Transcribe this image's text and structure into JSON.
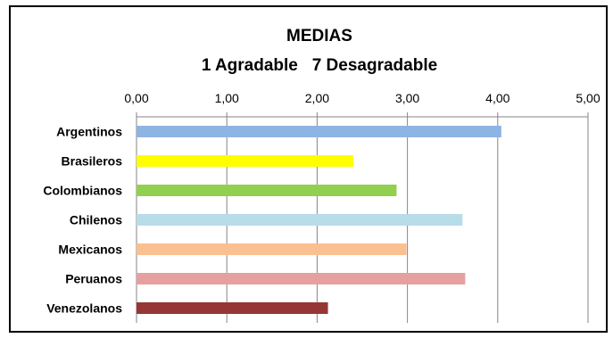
{
  "chart_data": {
    "type": "bar",
    "orientation": "horizontal",
    "title": [
      "MEDIAS",
      "1 Agradable   7 Desagradable"
    ],
    "categories": [
      "Argentinos",
      "Brasileros",
      "Colombianos",
      "Chilenos",
      "Mexicanos",
      "Peruanos",
      "Venezolanos"
    ],
    "values": [
      4.04,
      2.4,
      2.88,
      3.61,
      2.99,
      3.64,
      2.12
    ],
    "colors": [
      "#8eb4e3",
      "#ffff00",
      "#92d050",
      "#b7dde8",
      "#fac090",
      "#e6a0a0",
      "#953735"
    ],
    "xlim": [
      0,
      5
    ],
    "xticks": [
      "0,00",
      "1,00",
      "2,00",
      "3,00",
      "4,00",
      "5,00"
    ],
    "axis_position": "top",
    "grid": "vertical"
  }
}
